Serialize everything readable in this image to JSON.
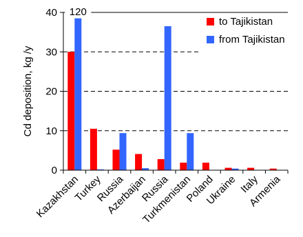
{
  "chart_data": {
    "type": "bar",
    "categories": [
      "Kazakhstan",
      "Turkey",
      "Russia",
      "Azerbaijan",
      "Russia",
      "Turkmenistan",
      "Poland",
      "Ukraine",
      "Italy",
      "Armenia"
    ],
    "series": [
      {
        "name": "to Tajikistan",
        "color": "#ff0000",
        "values": [
          30,
          10.5,
          5.2,
          4.1,
          2.8,
          1.9,
          1.9,
          0.6,
          0.6,
          0.4
        ]
      },
      {
        "name": "from Tajikistan",
        "color": "#3366ff",
        "values": [
          38.5,
          0.2,
          9.4,
          0.5,
          36.5,
          9.4,
          0.0,
          0.4,
          0.0,
          0.0
        ]
      }
    ],
    "ylabel": "Cd deposition, kg /y",
    "ylim": [
      0,
      40
    ],
    "yticks": [
      0,
      10,
      20,
      30,
      40
    ],
    "grid": "dashed horizontal",
    "legend": "top-right",
    "annotation": "120"
  }
}
